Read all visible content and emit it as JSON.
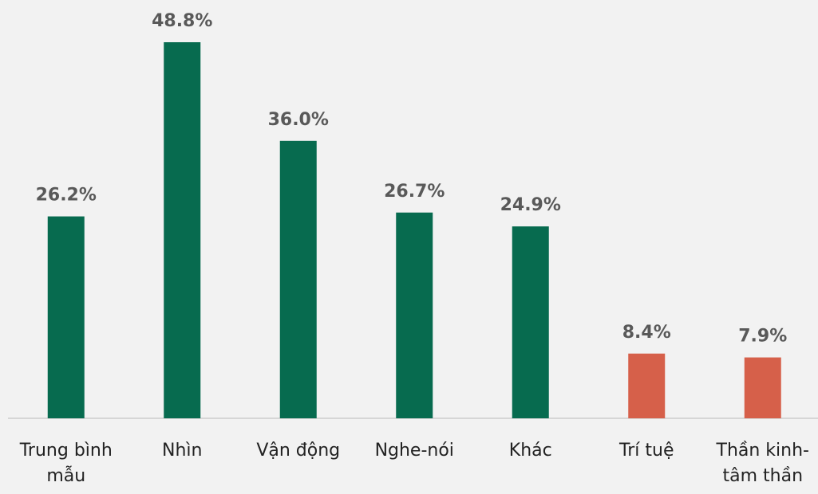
{
  "chart_data": {
    "type": "bar",
    "categories": [
      "Trung bình mẫu",
      "Nhìn",
      "Vận động",
      "Nghe-nói",
      "Khác",
      "Trí tuệ",
      "Thần kinh-tâm thần"
    ],
    "values": [
      26.2,
      48.8,
      36.0,
      26.7,
      24.9,
      8.4,
      7.9
    ],
    "value_labels": [
      "26.2%",
      "48.8%",
      "36.0%",
      "26.7%",
      "24.9%",
      "8.4%",
      "7.9%"
    ],
    "colors": [
      "#076b4f",
      "#076b4f",
      "#076b4f",
      "#076b4f",
      "#076b4f",
      "#d6604a",
      "#d6604a"
    ]
  }
}
